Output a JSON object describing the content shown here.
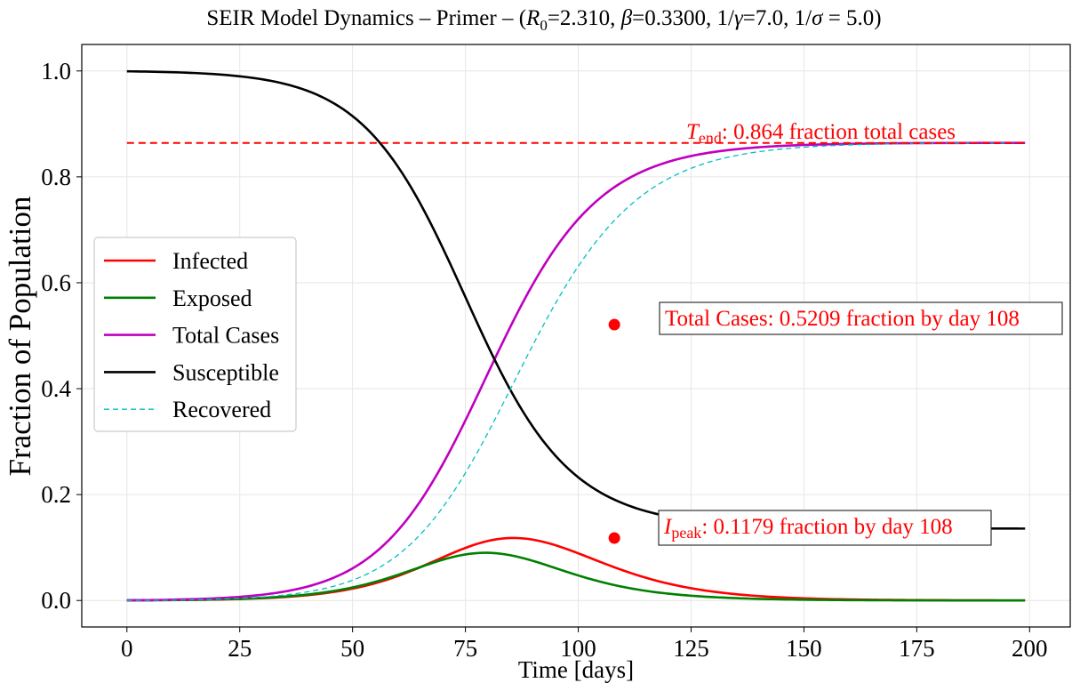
{
  "chart_data": {
    "type": "line",
    "title": {
      "prefix": "SEIR Model Dynamics – Primer – (",
      "r0_symbol": "R",
      "r0_sub": "0",
      "r0_value": "=2.310, ",
      "beta_symbol": "β",
      "beta_value": "=0.3300, 1/",
      "gamma_symbol": "γ",
      "gamma_value": "=7.0, 1/",
      "sigma_symbol": "σ",
      "sigma_value": " = 5.0)"
    },
    "xlabel": "Time [days]",
    "ylabel": "Fraction of Population",
    "xlim": [
      -10,
      209
    ],
    "ylim": [
      -0.05,
      1.05
    ],
    "xticks": [
      0,
      25,
      50,
      75,
      100,
      125,
      150,
      175,
      200
    ],
    "yticks": [
      0.0,
      0.2,
      0.4,
      0.6,
      0.8,
      1.0
    ],
    "grid": true,
    "legend_position": "center-left",
    "model": {
      "beta": 0.33,
      "gamma": 0.142857,
      "sigma": 0.2,
      "I0": 0.0003,
      "E0": 0.0004,
      "t_start": 0,
      "t_end": 199
    },
    "series": [
      {
        "name": "Infected",
        "key": "I",
        "color": "#ff0000",
        "style": "solid"
      },
      {
        "name": "Exposed",
        "key": "E",
        "color": "#008000",
        "style": "solid"
      },
      {
        "name": "Total Cases",
        "key": "C",
        "color": "#bf00bf",
        "style": "solid"
      },
      {
        "name": "Susceptible",
        "key": "S",
        "color": "#000000",
        "style": "solid"
      },
      {
        "name": "Recovered",
        "key": "R",
        "color": "#00bfbf",
        "style": "dashed"
      }
    ],
    "reference_line": {
      "y": 0.864,
      "x_range": [
        0,
        199
      ],
      "color": "#ff0000",
      "style": "dashed"
    },
    "markers": [
      {
        "x": 108,
        "y": 0.5209,
        "color": "#ff0000"
      },
      {
        "x": 108,
        "y": 0.1179,
        "color": "#ff0000"
      }
    ],
    "annotations": {
      "tend": {
        "symbol": "T",
        "sub": "end",
        "text": ": 0.864 fraction total cases"
      },
      "total": {
        "text": "Total Cases: 0.5209 fraction by day 108"
      },
      "ipeak": {
        "symbol": "I",
        "sub": "peak",
        "text": ": 0.1179 fraction by day 108"
      }
    }
  }
}
